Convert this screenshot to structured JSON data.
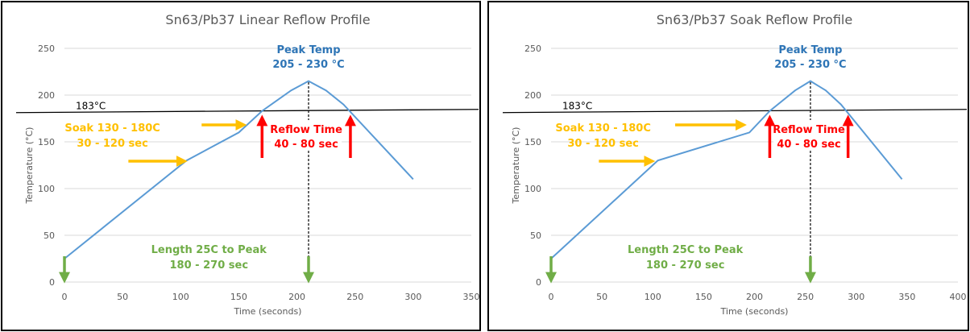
{
  "chart_data": [
    {
      "type": "line",
      "title": "Sn63/Pb37 Linear Reflow Profile",
      "xlabel": "Time (seconds)",
      "ylabel": "Temperature (°C)",
      "xlim": [
        0,
        350
      ],
      "ylim": [
        0,
        250
      ],
      "xticks": [
        0,
        50,
        100,
        150,
        200,
        250,
        300,
        350
      ],
      "yticks": [
        0,
        50,
        100,
        150,
        200,
        250
      ],
      "grid": true,
      "series": [
        {
          "x": [
            0,
            105,
            150,
            170,
            195,
            210,
            225,
            240,
            300
          ],
          "y": [
            25,
            130,
            160,
            183,
            205,
            215,
            205,
            190,
            110
          ]
        }
      ],
      "liquidus": {
        "y": 183,
        "label": "183°C"
      },
      "peak_line_x": 210,
      "annotations": {
        "peak_title": "Peak Temp",
        "peak_range": "205 - 230 °C",
        "soak_title": "Soak 130 - 180C",
        "soak_time": "30 - 120 sec",
        "reflow_title": "Reflow Time",
        "reflow_time": "40 - 80 sec",
        "length_title": "Length 25C to Peak",
        "length_time": "180 - 270 sec"
      },
      "soak_arrows": [
        {
          "x1": 55,
          "x2": 102,
          "y": 130
        },
        {
          "x1": 118,
          "x2": 153,
          "y": 167
        }
      ],
      "reflow_arrows_x": [
        170,
        246
      ],
      "length_arrows_x": [
        0,
        210
      ]
    },
    {
      "type": "line",
      "title": "Sn63/Pb37 Soak Reflow Profile",
      "xlabel": "Time (seconds)",
      "ylabel": "Temperature (°C)",
      "xlim": [
        0,
        400
      ],
      "ylim": [
        0,
        250
      ],
      "xticks": [
        0,
        50,
        100,
        150,
        200,
        250,
        300,
        350,
        400
      ],
      "yticks": [
        0,
        50,
        100,
        150,
        200,
        250
      ],
      "grid": true,
      "series": [
        {
          "x": [
            0,
            105,
            195,
            215,
            240,
            255,
            270,
            285,
            345
          ],
          "y": [
            25,
            130,
            160,
            183,
            205,
            215,
            205,
            190,
            110
          ]
        }
      ],
      "liquidus": {
        "y": 183,
        "label": "183°C"
      },
      "peak_line_x": 255,
      "annotations": {
        "peak_title": "Peak Temp",
        "peak_range": "205 - 230 °C",
        "soak_title": "Soak 130 - 180C",
        "soak_time": "30 - 120 sec",
        "reflow_title": "Reflow Time",
        "reflow_time": "40 - 80 sec",
        "length_title": "Length 25C to Peak",
        "length_time": "180 - 270 sec"
      },
      "soak_arrows": [
        {
          "x1": 47,
          "x2": 98,
          "y": 130
        },
        {
          "x1": 122,
          "x2": 188,
          "y": 167
        }
      ],
      "reflow_arrows_x": [
        215,
        292
      ],
      "length_arrows_x": [
        0,
        255
      ]
    }
  ],
  "colors": {
    "series": "#5b9bd5",
    "peak": "#2e75b6",
    "soak": "#ffc000",
    "reflow": "#ff0000",
    "length": "#70ad47"
  }
}
